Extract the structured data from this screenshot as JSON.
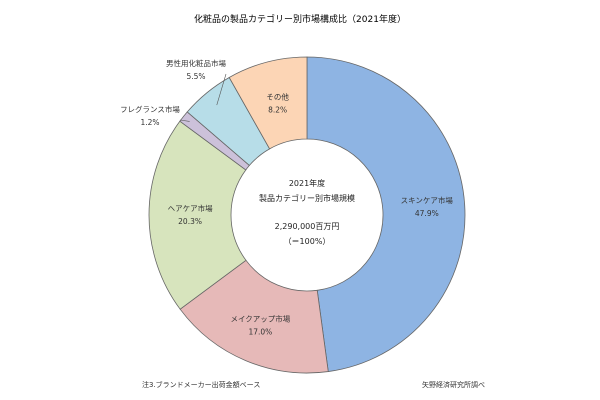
{
  "chart_data": {
    "type": "pie",
    "title": "化粧品の製品カテゴリー別市場構成比（2021年度）",
    "categories": [
      "スキンケア市場",
      "メイクアップ市場",
      "ヘアケア市場",
      "フレグランス市場",
      "男性用化粧品市場",
      "その他"
    ],
    "values": [
      47.9,
      17.0,
      20.3,
      1.2,
      5.5,
      8.2
    ],
    "value_labels": [
      "47.9%",
      "17.0%",
      "20.3%",
      "1.2%",
      "5.5%",
      "8.2%"
    ],
    "colors": [
      "#8eb4e3",
      "#e6b9b8",
      "#d7e4bd",
      "#ccc1da",
      "#b7dde8",
      "#fcd5b5"
    ],
    "center_text": [
      "2021年度",
      "製品カテゴリー別市場規模",
      "2,290,000百万円",
      "（＝100%）"
    ],
    "note_left": "注3.ブランドメーカー出荷金額ベース",
    "note_right": "矢野経済研究所調べ"
  }
}
